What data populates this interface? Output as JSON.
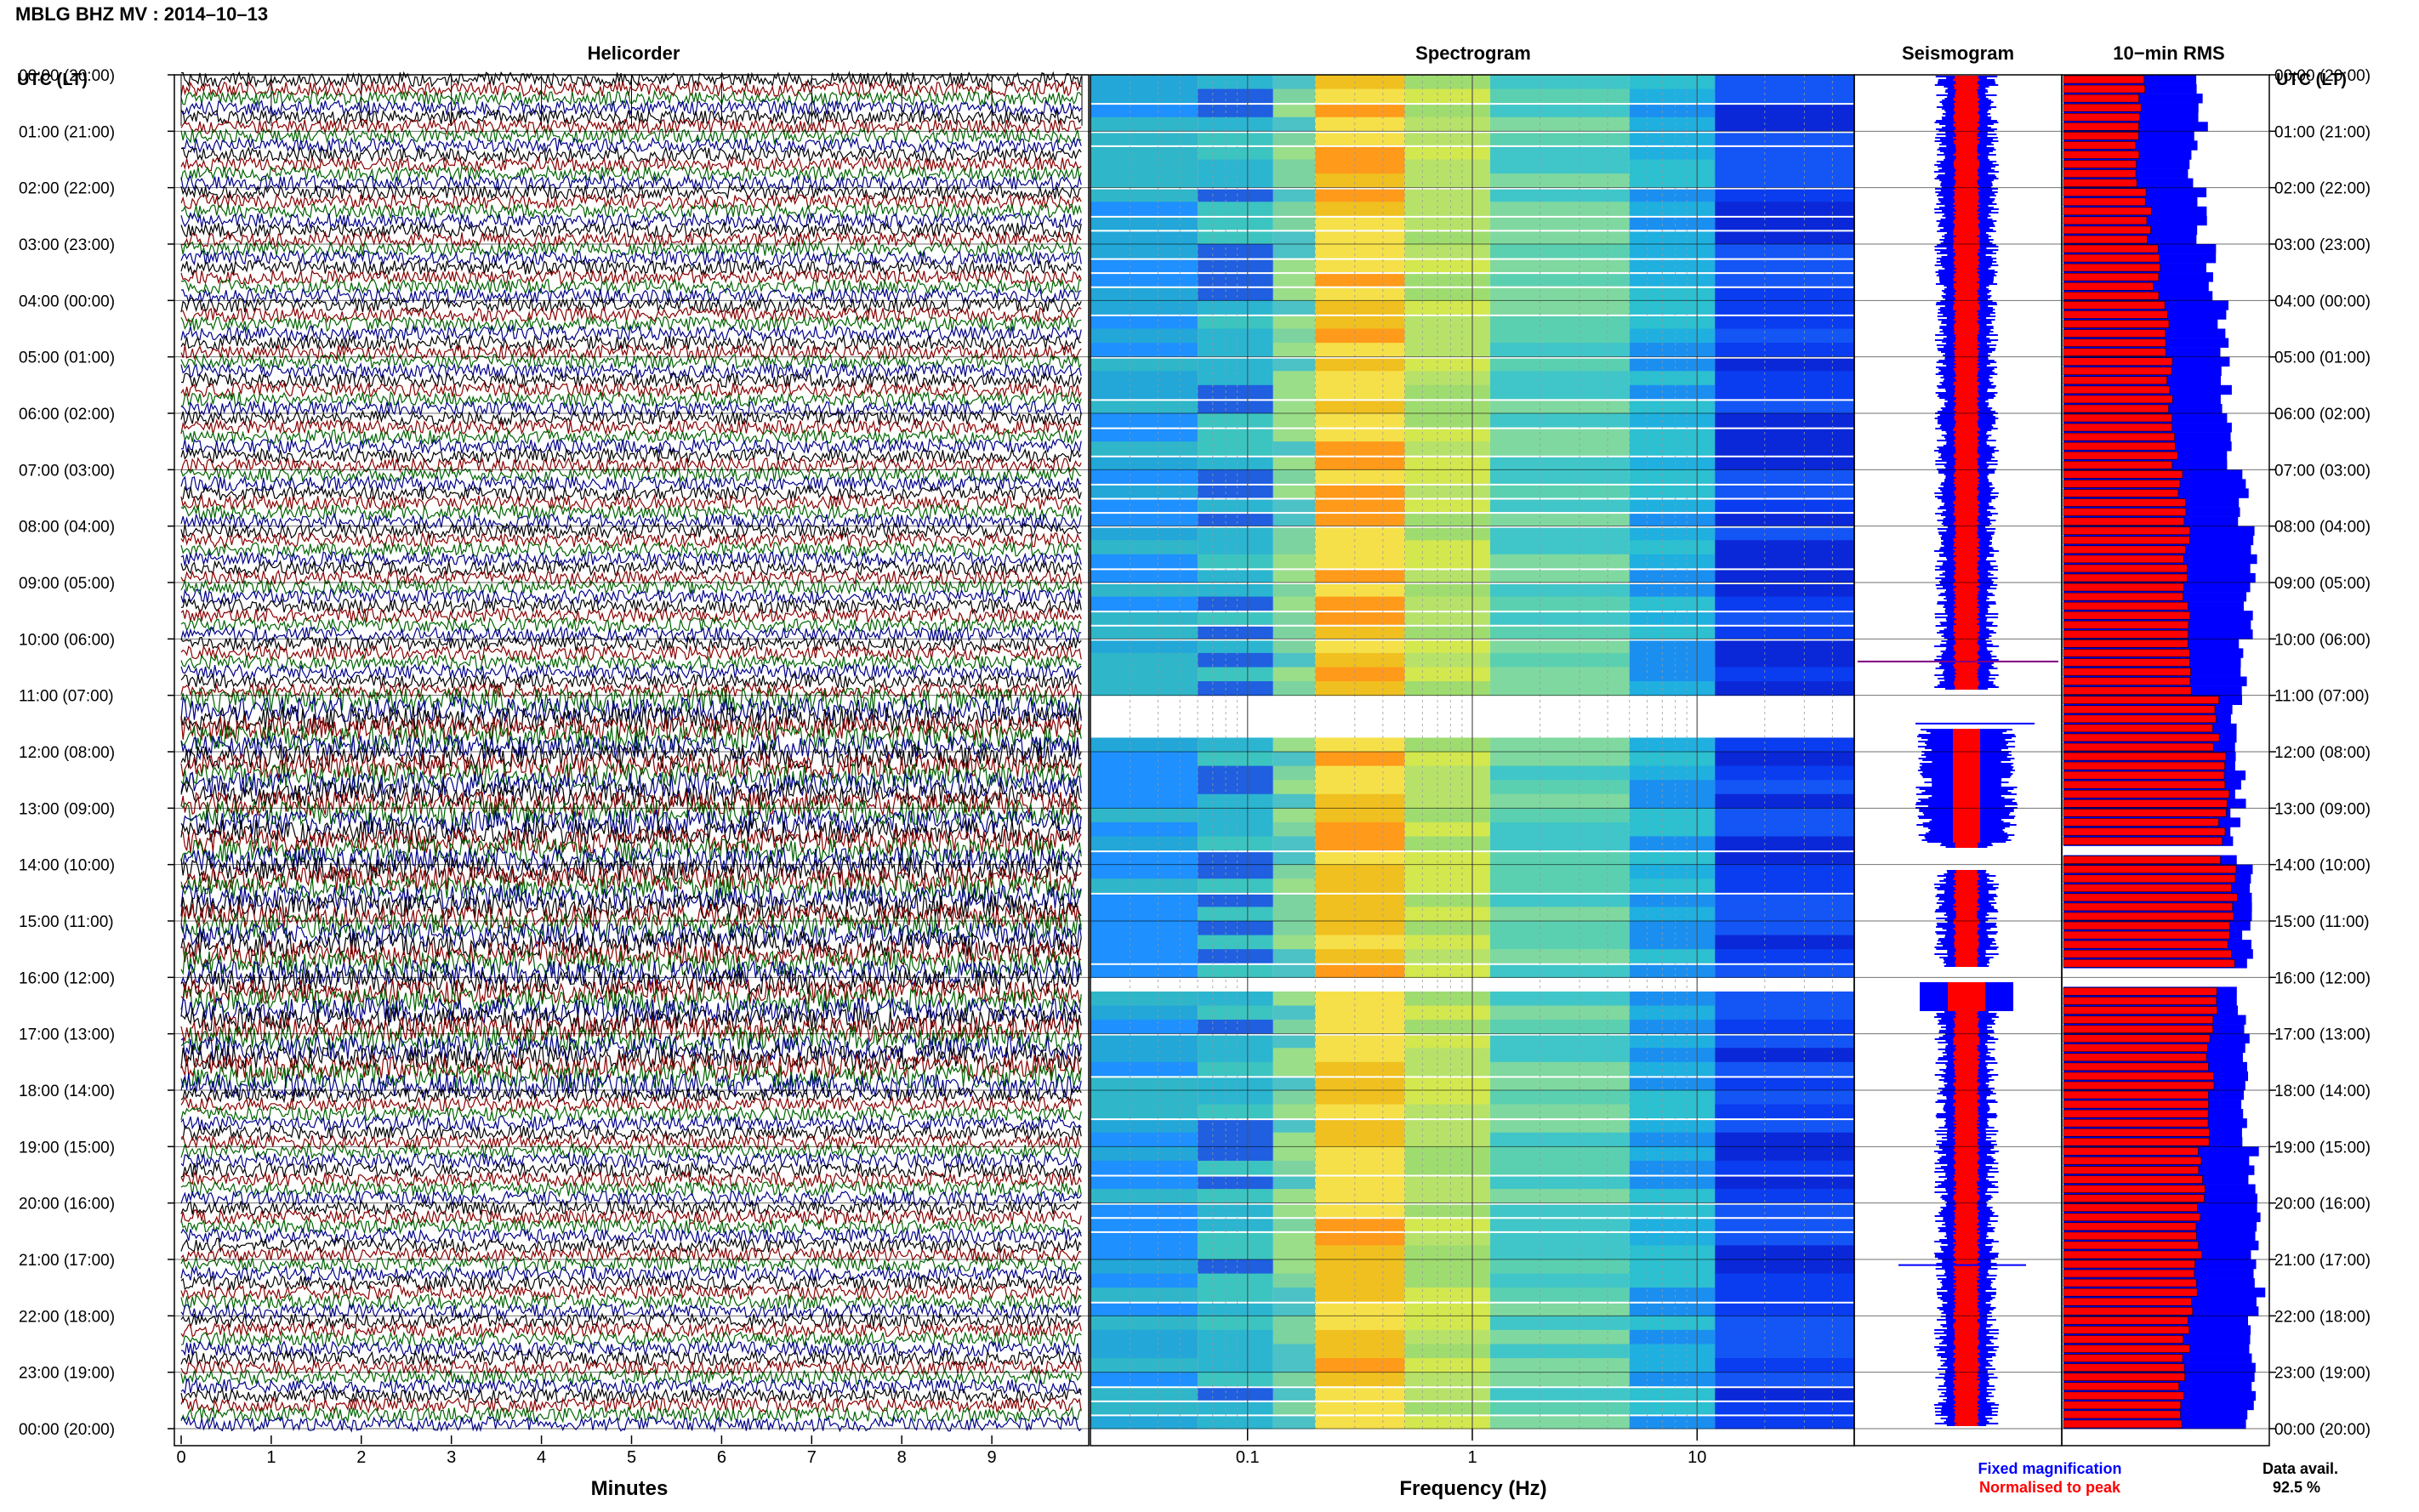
{
  "header": {
    "title": "MBLG BHZ MV : 2014–10–13"
  },
  "left_axis_label": "UTC (LT)",
  "right_axis_label": "UTC (LT)",
  "panels": {
    "helicorder": {
      "title": "Helicorder",
      "xlabel": "Minutes"
    },
    "spectrogram": {
      "title": "Spectrogram",
      "xlabel": "Frequency (Hz)"
    },
    "seismogram": {
      "title": "Seismogram"
    },
    "rms": {
      "title": "10−min RMS"
    }
  },
  "legend": {
    "fixed": "Fixed magnification",
    "normalised": "Normalised to peak",
    "fixed_color": "#0000ff",
    "normalised_color": "#ff0000"
  },
  "data_availability": {
    "label": "Data avail.",
    "value": "92.5 %"
  },
  "chart_data": [
    {
      "type": "line",
      "panel": "helicorder",
      "title": "Helicorder",
      "xlabel": "Minutes",
      "xlim": [
        0,
        10
      ],
      "x_ticks": [
        "0",
        "1",
        "2",
        "3",
        "4",
        "5",
        "6",
        "7",
        "8",
        "9"
      ],
      "y_labels": [
        "00:00 (20:00)",
        "01:00 (21:00)",
        "02:00 (22:00)",
        "03:00 (23:00)",
        "04:00 (00:00)",
        "05:00 (01:00)",
        "06:00 (02:00)",
        "07:00 (03:00)",
        "08:00 (04:00)",
        "09:00 (05:00)",
        "10:00 (06:00)",
        "11:00 (07:00)",
        "12:00 (08:00)",
        "13:00 (09:00)",
        "14:00 (10:00)",
        "15:00 (11:00)",
        "16:00 (12:00)",
        "17:00 (13:00)",
        "18:00 (14:00)",
        "19:00 (15:00)",
        "20:00 (16:00)",
        "21:00 (17:00)",
        "22:00 (18:00)",
        "23:00 (19:00)",
        "00:00 (20:00)"
      ],
      "trace_colors": [
        "#000000",
        "#8b0000",
        "#006400",
        "#00008b"
      ],
      "noisy_hours": [
        11,
        12,
        13,
        14,
        15,
        16,
        17
      ]
    },
    {
      "type": "heatmap",
      "panel": "spectrogram",
      "title": "Spectrogram",
      "xlabel": "Frequency (Hz)",
      "xscale": "log",
      "xlim": [
        0.02,
        50
      ],
      "x_ticks": [
        0.1,
        1,
        10
      ],
      "x_tick_labels": [
        "0.1",
        "1",
        "10"
      ],
      "peak_band_hz": [
        0.2,
        0.5
      ],
      "gap_hours": [
        [
          10.9,
          11.6
        ],
        [
          15.8,
          16.1
        ]
      ]
    },
    {
      "type": "area",
      "panel": "seismogram",
      "title": "Seismogram",
      "series": [
        {
          "name": "Fixed magnification",
          "color": "#0000ff"
        },
        {
          "name": "Normalised to peak",
          "color": "#ff0000"
        }
      ],
      "gap_hours": [
        [
          10.9,
          11.6
        ],
        [
          14.0,
          14.1
        ],
        [
          15.8,
          16.1
        ],
        [
          13.7,
          14.0
        ]
      ]
    },
    {
      "type": "bar",
      "panel": "rms",
      "title": "10−min RMS",
      "orientation": "horizontal",
      "interval_minutes": 10,
      "xlim": [
        0,
        1
      ],
      "series": [
        {
          "name": "Fixed magnification",
          "color": "#0000ff",
          "values_by_hour": [
            0.68,
            0.63,
            0.68,
            0.72,
            0.78,
            0.8,
            0.83,
            0.88,
            0.92,
            0.91,
            0.88,
            0.85,
            0.87,
            0.84,
            0.92,
            0.9,
            0.87,
            0.89,
            0.9,
            0.93,
            0.94,
            0.96,
            0.93,
            0.92
          ]
        },
        {
          "name": "Normalised to peak",
          "color": "#ff0000",
          "values_by_hour": [
            0.38,
            0.37,
            0.42,
            0.46,
            0.5,
            0.52,
            0.55,
            0.58,
            0.6,
            0.6,
            0.62,
            0.75,
            0.8,
            0.78,
            0.84,
            0.82,
            0.75,
            0.72,
            0.7,
            0.68,
            0.66,
            0.64,
            0.6,
            0.58
          ]
        }
      ],
      "gap_hours": [
        13.7,
        15.9
      ]
    }
  ]
}
